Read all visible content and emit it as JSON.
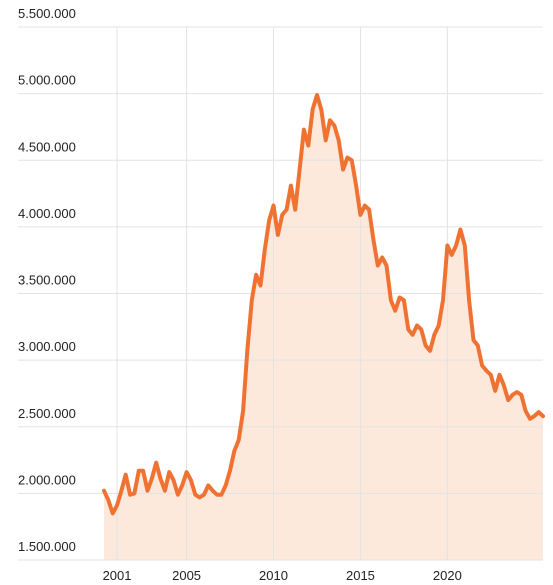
{
  "chart_data": {
    "type": "area",
    "x": [
      2000.25,
      2000.5,
      2000.75,
      2001,
      2001.25,
      2001.5,
      2001.75,
      2002,
      2002.25,
      2002.5,
      2002.75,
      2003,
      2003.25,
      2003.5,
      2003.75,
      2004,
      2004.25,
      2004.5,
      2004.75,
      2005,
      2005.25,
      2005.5,
      2005.75,
      2006,
      2006.25,
      2006.5,
      2006.75,
      2007,
      2007.25,
      2007.5,
      2007.75,
      2008,
      2008.25,
      2008.5,
      2008.75,
      2009,
      2009.25,
      2009.5,
      2009.75,
      2010,
      2010.25,
      2010.5,
      2010.75,
      2011,
      2011.25,
      2011.5,
      2011.75,
      2012,
      2012.25,
      2012.5,
      2012.75,
      2013,
      2013.25,
      2013.5,
      2013.75,
      2014,
      2014.25,
      2014.5,
      2014.75,
      2015,
      2015.25,
      2015.5,
      2015.75,
      2016,
      2016.25,
      2016.5,
      2016.75,
      2017,
      2017.25,
      2017.5,
      2017.75,
      2018,
      2018.25,
      2018.5,
      2018.75,
      2019,
      2019.25,
      2019.5,
      2019.75,
      2020,
      2020.25,
      2020.5,
      2020.75,
      2021,
      2021.25,
      2021.5,
      2021.75,
      2022,
      2022.25,
      2022.5,
      2022.75,
      2023,
      2023.25,
      2023.5,
      2023.75,
      2024,
      2024.25,
      2024.5,
      2024.75,
      2025,
      2025.25,
      2025.5
    ],
    "series": [
      {
        "color": "#f07232",
        "fill": "#fde8dc",
        "values": [
          2020000,
          1950000,
          1850000,
          1910000,
          2020000,
          2140000,
          1990000,
          2000000,
          2170000,
          2170000,
          2020000,
          2110000,
          2230000,
          2110000,
          2020000,
          2160000,
          2100000,
          1990000,
          2060000,
          2160000,
          2100000,
          1990000,
          1970000,
          1990000,
          2060000,
          2020000,
          1990000,
          1990000,
          2060000,
          2170000,
          2320000,
          2400000,
          2620000,
          3080000,
          3450000,
          3640000,
          3560000,
          3830000,
          4050000,
          4160000,
          3940000,
          4090000,
          4130000,
          4310000,
          4130000,
          4430000,
          4730000,
          4610000,
          4880000,
          4990000,
          4880000,
          4650000,
          4800000,
          4760000,
          4650000,
          4430000,
          4520000,
          4500000,
          4310000,
          4090000,
          4160000,
          4130000,
          3900000,
          3710000,
          3770000,
          3710000,
          3450000,
          3370000,
          3470000,
          3450000,
          3230000,
          3190000,
          3260000,
          3230000,
          3110000,
          3070000,
          3190000,
          3260000,
          3450000,
          3860000,
          3790000,
          3860000,
          3980000,
          3860000,
          3450000,
          3150000,
          3110000,
          2960000,
          2920000,
          2890000,
          2770000,
          2890000,
          2810000,
          2700000,
          2740000,
          2760000,
          2740000,
          2620000,
          2560000,
          2580000,
          2610000,
          2580000
        ]
      }
    ],
    "xlim": [
      2000.25,
      2025.5
    ],
    "xticks": [
      2001,
      2005,
      2010,
      2015,
      2020
    ],
    "ylim": [
      1500000,
      5500000
    ],
    "yticks": [
      {
        "value": 1500000,
        "label": "1.500.000"
      },
      {
        "value": 2000000,
        "label": "2.000.000"
      },
      {
        "value": 2500000,
        "label": "2.500.000"
      },
      {
        "value": 3000000,
        "label": "3.000.000"
      },
      {
        "value": 3500000,
        "label": "3.500.000"
      },
      {
        "value": 4000000,
        "label": "4.000.000"
      },
      {
        "value": 4500000,
        "label": "4.500.000"
      },
      {
        "value": 5000000,
        "label": "5.000.000"
      },
      {
        "value": 5500000,
        "label": "5.500.000"
      }
    ],
    "grid": true
  }
}
